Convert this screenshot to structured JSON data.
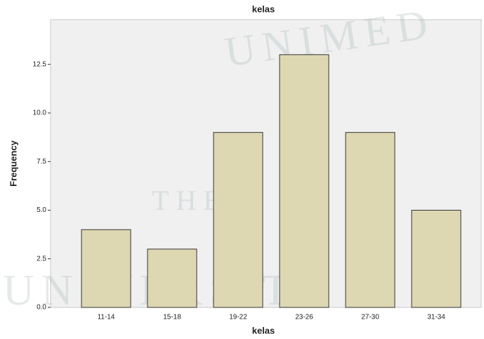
{
  "chart_data": {
    "type": "bar",
    "title": "kelas",
    "x_label": "kelas",
    "y_label": "Frequency",
    "categories": [
      "11-14",
      "15-18",
      "19-22",
      "23-26",
      "27-30",
      "31-34"
    ],
    "values": [
      4,
      3,
      9,
      13,
      9,
      5
    ],
    "color": "#ddd8b2",
    "ylim": [
      0,
      14.8
    ],
    "yticks": [
      {
        "value": 0,
        "label": "0.0"
      },
      2.5,
      {
        "value": 5,
        "label": "5.0"
      },
      7.5,
      {
        "value": 10,
        "label": "10.0"
      },
      12.5
    ],
    "grid": false,
    "watermark": [
      "UNIMED",
      "THE",
      "UNIVERSITY"
    ]
  }
}
